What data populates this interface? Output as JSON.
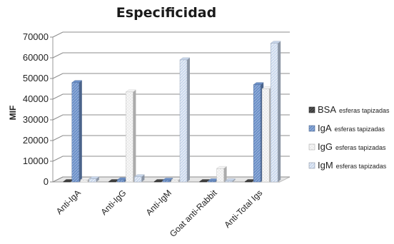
{
  "chart_data": {
    "type": "bar",
    "title": "Especificidad",
    "xlabel": "",
    "ylabel": "MIF",
    "ylim": [
      0,
      70000
    ],
    "yticks": [
      "0",
      "10000",
      "20000",
      "30000",
      "40000",
      "50000",
      "60000",
      "70000"
    ],
    "grid": true,
    "legend_position": "right",
    "categories": [
      "Anti-IgA",
      "Anti-IgG",
      "Anti-IgM",
      "Goat anti-Rabbit",
      "Anti-Total Igs"
    ],
    "series": [
      {
        "name": "BSA",
        "sublabel": "esferas tapizadas",
        "color": "#404040",
        "values": [
          150,
          150,
          150,
          150,
          150
        ]
      },
      {
        "name": "IgA",
        "sublabel": "esferas tapizadas",
        "color": "#6b8fc7",
        "values": [
          48000,
          1000,
          800,
          500,
          47000
        ]
      },
      {
        "name": "IgG",
        "sublabel": "esferas tapizadas",
        "color": "#f4f4f4",
        "values": [
          1000,
          43500,
          1000,
          6500,
          45000
        ]
      },
      {
        "name": "IgM",
        "sublabel": "esferas tapizadas",
        "color": "#c7d5ea",
        "values": [
          1500,
          2500,
          59000,
          500,
          67000
        ]
      }
    ]
  }
}
